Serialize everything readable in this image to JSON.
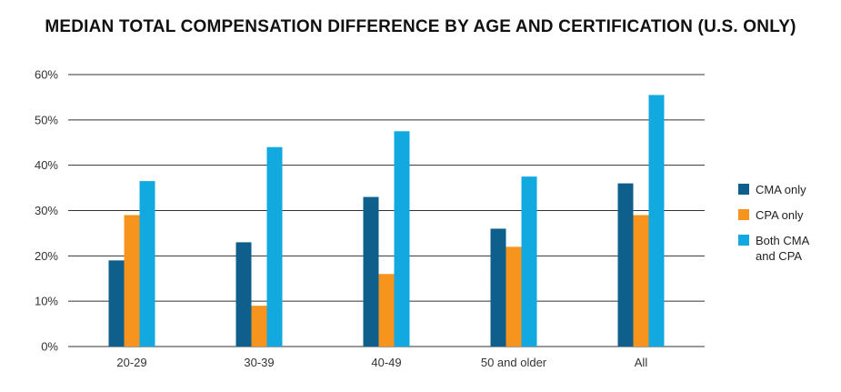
{
  "chart_data": {
    "type": "bar",
    "title": "MEDIAN TOTAL COMPENSATION DIFFERENCE BY AGE AND CERTIFICATION (U.S. ONLY)",
    "xlabel": "",
    "ylabel": "",
    "categories": [
      "20-29",
      "30-39",
      "40-49",
      "50 and older",
      "All"
    ],
    "series": [
      {
        "name": "CMA only",
        "color": "#0f5f8c",
        "values": [
          19,
          23,
          33,
          26,
          36
        ]
      },
      {
        "name": "CPA only",
        "color": "#f7941d",
        "values": [
          29,
          9,
          16,
          22,
          29
        ]
      },
      {
        "name": "Both CMA and CPA",
        "color": "#12a9e0",
        "values": [
          36.5,
          44,
          47.5,
          37.5,
          55.5
        ]
      }
    ],
    "ylim": [
      0,
      60
    ],
    "yticks": [
      "0%",
      "10%",
      "20%",
      "30%",
      "40%",
      "50%",
      "60%"
    ],
    "grid": true,
    "legend_position": "right"
  }
}
